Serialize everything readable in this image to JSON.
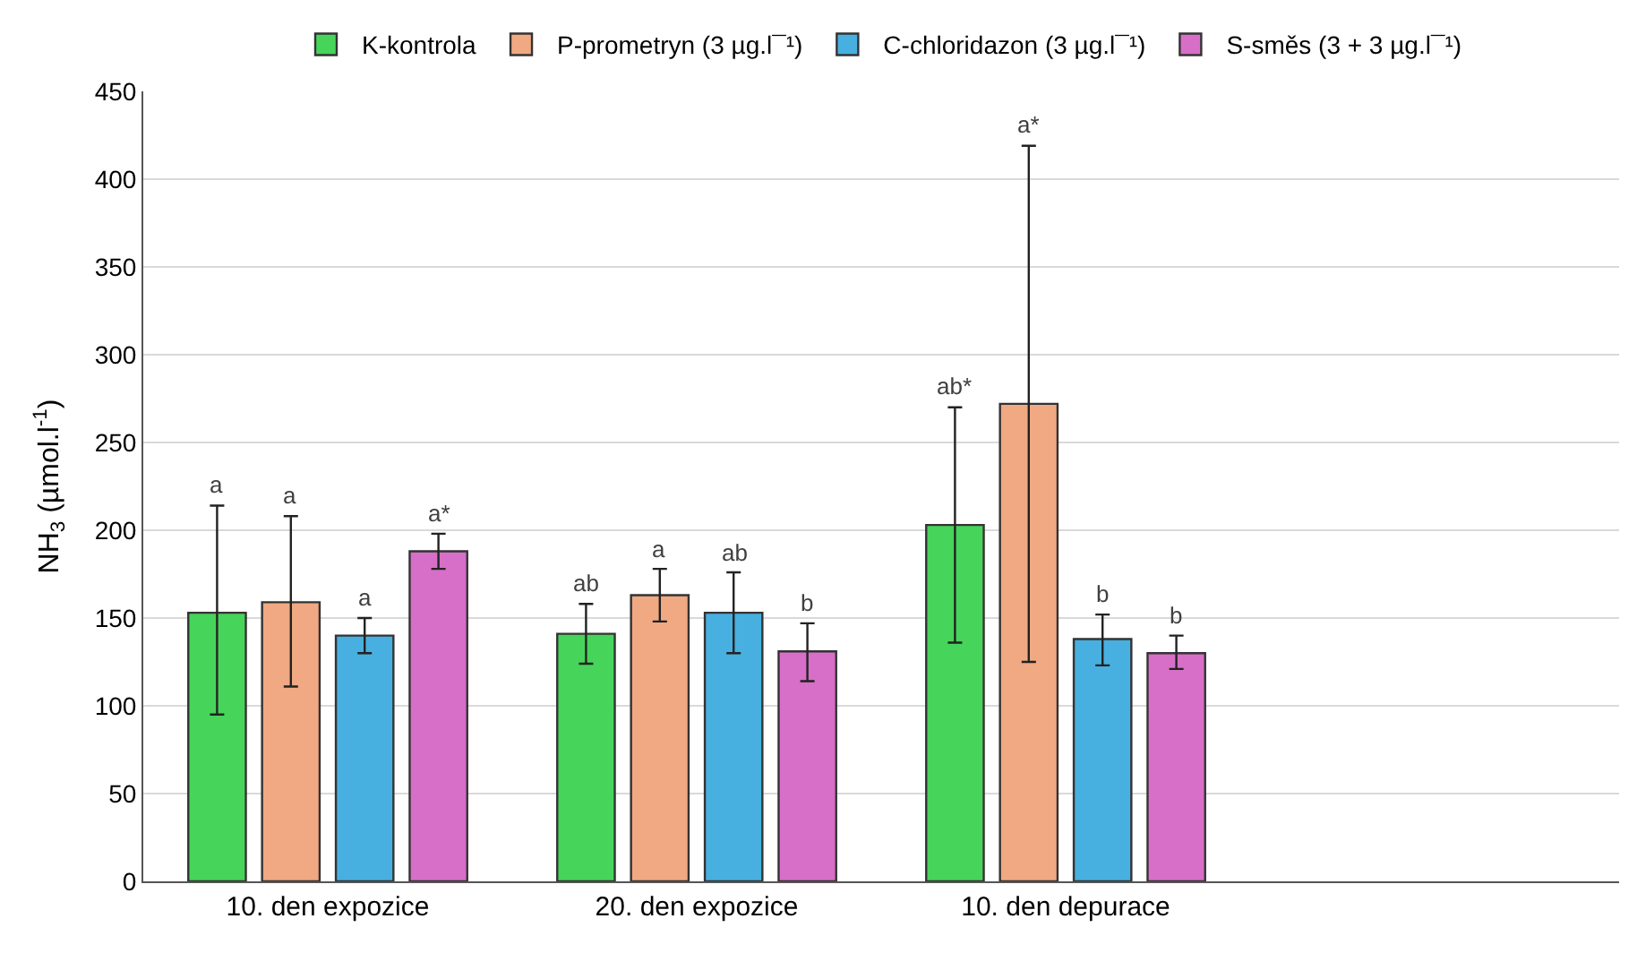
{
  "chart_data": {
    "type": "bar",
    "ylabel": "NH$_{3}$ (µmol.l$^{-1}$)",
    "categories": [
      "10. den expozice",
      "20. den expozice",
      "10. den depurace",
      null
    ],
    "series": [
      {
        "name": "K-kontrola",
        "color": "#47d45a",
        "values": [
          153,
          141,
          203,
          null
        ],
        "errors": [
          [
            95,
            214
          ],
          [
            124,
            158
          ],
          [
            136,
            270
          ],
          null
        ]
      },
      {
        "name": "P-prometryn (3 µg.l¯¹)",
        "color": "#f0a982",
        "values": [
          159,
          163,
          272,
          null
        ],
        "errors": [
          [
            111,
            208
          ],
          [
            148,
            178
          ],
          [
            125,
            419
          ],
          null
        ]
      },
      {
        "name": "C-chloridazon (3 µg.l¯¹)",
        "color": "#47b0e0",
        "values": [
          140,
          153,
          138,
          null
        ],
        "errors": [
          [
            130,
            150
          ],
          [
            130,
            176
          ],
          [
            123,
            152
          ],
          null
        ]
      },
      {
        "name": "S-směs (3 + 3 µg.l¯¹)",
        "color": "#d76fc8",
        "values": [
          188,
          131,
          130,
          null
        ],
        "errors": [
          [
            178,
            198
          ],
          [
            114,
            147
          ],
          [
            121,
            140
          ],
          null
        ]
      }
    ],
    "annotations": [
      "a",
      "a",
      "a",
      "a*",
      "ab",
      "a",
      "ab",
      "b",
      "ab*",
      "a*",
      "b",
      "b"
    ],
    "ylim": [
      0,
      450
    ],
    "yticks": [
      0,
      50,
      100,
      150,
      200,
      250,
      300,
      350,
      400,
      450
    ],
    "grid": "y",
    "legend": "top"
  }
}
